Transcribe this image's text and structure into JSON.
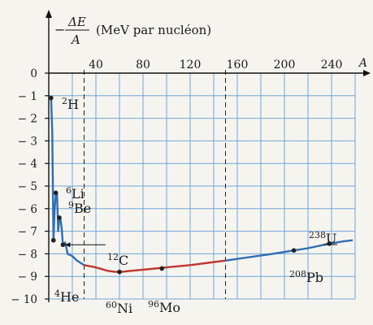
{
  "chart_data": {
    "type": "line",
    "title": "",
    "ylabel_parts": {
      "sign": "−",
      "numerator": "ΔE",
      "denominator": "A",
      "unit": "(MeV par nucléon)"
    },
    "xlabel": "A",
    "xlim": [
      0,
      260
    ],
    "ylim": [
      -10,
      0
    ],
    "x_ticks": [
      40,
      80,
      120,
      160,
      200,
      240
    ],
    "y_ticks": [
      0,
      -1,
      -2,
      -3,
      -4,
      -5,
      -6,
      -7,
      -8,
      -9,
      -10
    ],
    "grid": true,
    "dashed_x": [
      30,
      150
    ],
    "series": [
      {
        "segment": "light",
        "color": "#2c6fb4",
        "points": [
          [
            2,
            -1.1
          ],
          [
            3,
            -2.6
          ],
          [
            4,
            -7.4
          ],
          [
            5,
            -6.0
          ],
          [
            6,
            -5.3
          ],
          [
            7,
            -5.4
          ],
          [
            8,
            -7.0
          ],
          [
            9,
            -6.4
          ],
          [
            10,
            -6.5
          ],
          [
            11,
            -6.9
          ],
          [
            12,
            -7.6
          ],
          [
            14,
            -7.5
          ],
          [
            16,
            -8.0
          ],
          [
            20,
            -8.1
          ],
          [
            24,
            -8.3
          ],
          [
            30,
            -8.5
          ]
        ]
      },
      {
        "segment": "middle",
        "color": "#c0362c",
        "points": [
          [
            30,
            -8.5
          ],
          [
            40,
            -8.6
          ],
          [
            50,
            -8.75
          ],
          [
            56,
            -8.8
          ],
          [
            62,
            -8.8
          ],
          [
            70,
            -8.75
          ],
          [
            80,
            -8.7
          ],
          [
            90,
            -8.65
          ],
          [
            100,
            -8.6
          ],
          [
            110,
            -8.55
          ],
          [
            120,
            -8.5
          ],
          [
            135,
            -8.4
          ],
          [
            150,
            -8.3
          ]
        ]
      },
      {
        "segment": "heavy",
        "color": "#2c6fb4",
        "points": [
          [
            150,
            -8.3
          ],
          [
            170,
            -8.15
          ],
          [
            190,
            -8.0
          ],
          [
            208,
            -7.85
          ],
          [
            220,
            -7.75
          ],
          [
            238,
            -7.55
          ],
          [
            250,
            -7.45
          ],
          [
            258,
            -7.4
          ]
        ]
      }
    ],
    "nuclides": [
      {
        "mass": "2",
        "symbol": "H",
        "A": 2,
        "E": -1.1
      },
      {
        "mass": "6",
        "symbol": "Li",
        "A": 6,
        "E": -5.3
      },
      {
        "mass": "9",
        "symbol": "Be",
        "A": 9,
        "E": -6.4
      },
      {
        "mass": "12",
        "symbol": "C",
        "A": 12,
        "E": -7.6
      },
      {
        "mass": "4",
        "symbol": "He",
        "A": 4,
        "E": -7.4
      },
      {
        "mass": "60",
        "symbol": "Ni",
        "A": 60,
        "E": -8.8
      },
      {
        "mass": "96",
        "symbol": "Mo",
        "A": 96,
        "E": -8.65
      },
      {
        "mass": "208",
        "symbol": "Pb",
        "A": 208,
        "E": -7.85
      },
      {
        "mass": "238",
        "symbol": "U",
        "A": 238,
        "E": -7.55
      }
    ]
  }
}
